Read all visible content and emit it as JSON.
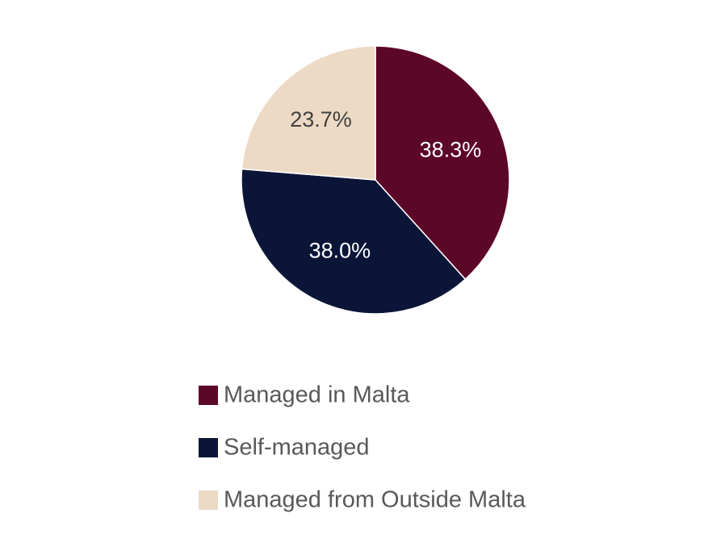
{
  "chart_data": {
    "type": "pie",
    "categories": [
      "Managed in Malta",
      "Self-managed",
      "Managed from Outside Malta"
    ],
    "values": [
      38.3,
      38.0,
      23.7
    ],
    "data_labels": [
      "38.3%",
      "38.0%",
      "23.7%"
    ],
    "colors": [
      "#5c0628",
      "#0b1538",
      "#ecdac5"
    ],
    "label_colors": [
      "#ffffff",
      "#ffffff",
      "#404040"
    ],
    "start_angle_deg": 0,
    "direction": "clockwise",
    "legend": {
      "position": "bottom",
      "entries": [
        "Managed in Malta",
        "Self-managed",
        "Managed from Outside Malta"
      ]
    }
  }
}
